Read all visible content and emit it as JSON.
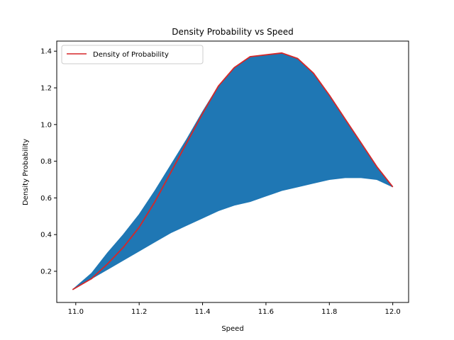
{
  "chart_data": {
    "type": "line",
    "title": "Density Probability vs Speed",
    "xlabel": "Speed",
    "ylabel": "Density Probability",
    "xlim": [
      10.94,
      12.05
    ],
    "ylim": [
      0.03,
      1.455
    ],
    "xticks": [
      11.0,
      11.2,
      11.4,
      11.6,
      11.8,
      12.0
    ],
    "xtick_labels": [
      "11.0",
      "11.2",
      "11.4",
      "11.6",
      "11.8",
      "12.0"
    ],
    "yticks": [
      0.2,
      0.4,
      0.6,
      0.8,
      1.0,
      1.2,
      1.4
    ],
    "ytick_labels": [
      "0.2",
      "0.4",
      "0.6",
      "0.8",
      "1.0",
      "1.2",
      "1.4"
    ],
    "grid": false,
    "legend": {
      "placement": "top-left",
      "entries": [
        {
          "label": "Density of Probability",
          "color": "#d62728"
        }
      ]
    },
    "series": [
      {
        "name": "Density of Probability",
        "kind": "line",
        "color": "#d62728",
        "x": [
          10.99,
          11.05,
          11.1,
          11.15,
          11.2,
          11.25,
          11.3,
          11.35,
          11.4,
          11.45,
          11.5,
          11.55,
          11.6,
          11.65,
          11.7,
          11.75,
          11.8,
          11.85,
          11.9,
          11.95,
          12.0
        ],
        "y": [
          0.1,
          0.16,
          0.24,
          0.33,
          0.44,
          0.58,
          0.74,
          0.9,
          1.06,
          1.21,
          1.31,
          1.37,
          1.38,
          1.39,
          1.36,
          1.28,
          1.16,
          1.03,
          0.9,
          0.77,
          0.66
        ]
      },
      {
        "kind": "filled-band",
        "color": "#1f77b4",
        "x": [
          10.99,
          11.05,
          11.1,
          11.15,
          11.2,
          11.25,
          11.3,
          11.35,
          11.4,
          11.45,
          11.5,
          11.55,
          11.6,
          11.65,
          11.7,
          11.75,
          11.8,
          11.85,
          11.9,
          11.95,
          12.0
        ],
        "upper": [
          0.1,
          0.19,
          0.3,
          0.4,
          0.51,
          0.64,
          0.78,
          0.92,
          1.07,
          1.21,
          1.31,
          1.37,
          1.38,
          1.39,
          1.36,
          1.28,
          1.16,
          1.03,
          0.9,
          0.77,
          0.66
        ],
        "lower": [
          0.1,
          0.16,
          0.21,
          0.26,
          0.31,
          0.36,
          0.41,
          0.45,
          0.49,
          0.53,
          0.56,
          0.58,
          0.61,
          0.64,
          0.66,
          0.68,
          0.7,
          0.71,
          0.71,
          0.7,
          0.66
        ]
      }
    ]
  }
}
